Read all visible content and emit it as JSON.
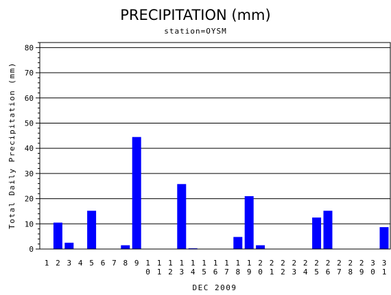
{
  "chart_data": {
    "type": "bar",
    "title": "PRECIPITATION (mm)",
    "subtitle": "station=OYSM",
    "xlabel": "DEC 2009",
    "ylabel": "Total Daily Precipitation (mm)",
    "ylim": [
      0,
      82
    ],
    "yticks": [
      0,
      10,
      20,
      30,
      40,
      50,
      60,
      70,
      80
    ],
    "grid": true,
    "bar_color": "#0000ff",
    "categories": [
      "1",
      "2",
      "3",
      "4",
      "5",
      "6",
      "7",
      "8",
      "9",
      "10",
      "11",
      "12",
      "13",
      "14",
      "15",
      "16",
      "17",
      "18",
      "19",
      "20",
      "21",
      "22",
      "23",
      "24",
      "25",
      "26",
      "27",
      "28",
      "29",
      "30",
      "31"
    ],
    "tick_labels": [
      [
        "1"
      ],
      [
        "2"
      ],
      [
        "3"
      ],
      [
        "4"
      ],
      [
        "5"
      ],
      [
        "6"
      ],
      [
        "7"
      ],
      [
        "8"
      ],
      [
        "9"
      ],
      [
        "1",
        "0"
      ],
      [
        "1",
        "1"
      ],
      [
        "1",
        "2"
      ],
      [
        "1",
        "3"
      ],
      [
        "1",
        "4"
      ],
      [
        "1",
        "5"
      ],
      [
        "1",
        "6"
      ],
      [
        "1",
        "7"
      ],
      [
        "1",
        "8"
      ],
      [
        "1",
        "9"
      ],
      [
        "2",
        "0"
      ],
      [
        "2",
        "1"
      ],
      [
        "2",
        "2"
      ],
      [
        "2",
        "3"
      ],
      [
        "2",
        "4"
      ],
      [
        "2",
        "5"
      ],
      [
        "2",
        "6"
      ],
      [
        "2",
        "7"
      ],
      [
        "2",
        "8"
      ],
      [
        "2",
        "9"
      ],
      [
        "3",
        "0"
      ],
      [
        "3",
        "1"
      ]
    ],
    "values": [
      0,
      10.5,
      2.5,
      0,
      15.2,
      0,
      0,
      1.5,
      44.5,
      0,
      0,
      0,
      25.8,
      0.3,
      0,
      0,
      0,
      4.8,
      21.0,
      1.5,
      0,
      0,
      0,
      0,
      12.5,
      15.2,
      0,
      0,
      0,
      0,
      8.7
    ]
  }
}
